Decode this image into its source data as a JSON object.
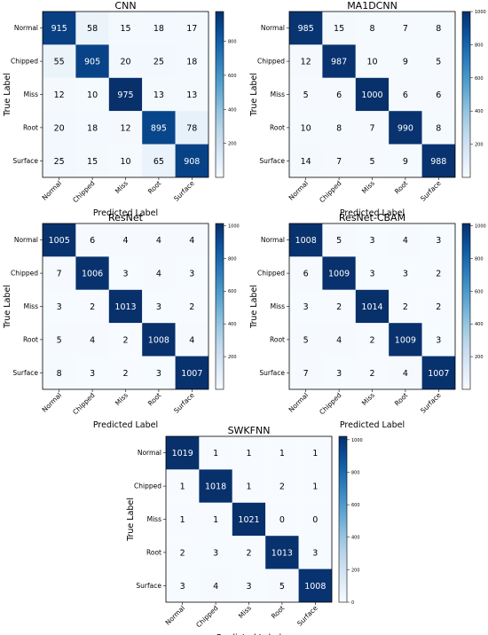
{
  "chart_data": [
    {
      "type": "heatmap",
      "title": "CNN",
      "xlabel": "Predicted Label",
      "ylabel": "True Label",
      "x_categories": [
        "Normal",
        "Chipped",
        "Miss",
        "Root",
        "Surface"
      ],
      "y_categories": [
        "Normal",
        "Chipped",
        "Miss",
        "Root",
        "Surface"
      ],
      "values": [
        [
          915,
          58,
          15,
          18,
          17
        ],
        [
          55,
          905,
          20,
          25,
          18
        ],
        [
          12,
          10,
          975,
          13,
          13
        ],
        [
          20,
          18,
          12,
          895,
          78
        ],
        [
          25,
          15,
          10,
          65,
          908
        ]
      ],
      "colorbar": {
        "min": 0,
        "max": 975,
        "ticks": [
          "200",
          "400",
          "600",
          "800"
        ]
      },
      "colormap": "Blues"
    },
    {
      "type": "heatmap",
      "title": "MA1DCNN",
      "xlabel": "Predicted Label",
      "ylabel": "True Label",
      "x_categories": [
        "Normal",
        "Chipped",
        "Miss",
        "Root",
        "Surface"
      ],
      "y_categories": [
        "Normal",
        "Chipped",
        "Miss",
        "Root",
        "Surface"
      ],
      "values": [
        [
          985,
          15,
          8,
          7,
          8
        ],
        [
          12,
          987,
          10,
          9,
          5
        ],
        [
          5,
          6,
          1000,
          6,
          6
        ],
        [
          10,
          8,
          7,
          990,
          8
        ],
        [
          14,
          7,
          5,
          9,
          988
        ]
      ],
      "colorbar": {
        "min": 0,
        "max": 1000,
        "ticks": [
          "200",
          "400",
          "600",
          "800",
          "1000"
        ]
      },
      "colormap": "Blues"
    },
    {
      "type": "heatmap",
      "title": "ResNet",
      "xlabel": "Predicted Label",
      "ylabel": "True Label",
      "x_categories": [
        "Normal",
        "Chipped",
        "Miss",
        "Root",
        "Surface"
      ],
      "y_categories": [
        "Normal",
        "Chipped",
        "Miss",
        "Root",
        "Surface"
      ],
      "values": [
        [
          1005,
          6,
          4,
          4,
          4
        ],
        [
          7,
          1006,
          3,
          4,
          3
        ],
        [
          3,
          2,
          1013,
          3,
          2
        ],
        [
          5,
          4,
          2,
          1008,
          4
        ],
        [
          8,
          3,
          2,
          3,
          1007
        ]
      ],
      "colorbar": {
        "min": 0,
        "max": 1013,
        "ticks": [
          "200",
          "400",
          "600",
          "800",
          "1000"
        ]
      },
      "colormap": "Blues"
    },
    {
      "type": "heatmap",
      "title": "ResNet-CBAM",
      "xlabel": "Predicted Label",
      "ylabel": "True Label",
      "x_categories": [
        "Normal",
        "Chipped",
        "Miss",
        "Root",
        "Surface"
      ],
      "y_categories": [
        "Normal",
        "Chipped",
        "Miss",
        "Root",
        "Surface"
      ],
      "values": [
        [
          1008,
          5,
          3,
          4,
          3
        ],
        [
          6,
          1009,
          3,
          3,
          2
        ],
        [
          3,
          2,
          1014,
          2,
          2
        ],
        [
          5,
          4,
          2,
          1009,
          3
        ],
        [
          7,
          3,
          2,
          4,
          1007
        ]
      ],
      "colorbar": {
        "min": 0,
        "max": 1014,
        "ticks": [
          "200",
          "400",
          "600",
          "800",
          "1000"
        ]
      },
      "colormap": "Blues"
    },
    {
      "type": "heatmap",
      "title": "SWKFNN",
      "xlabel": "Predicted Label",
      "ylabel": "True Label",
      "x_categories": [
        "Normal",
        "Chipped",
        "Miss",
        "Root",
        "Surface"
      ],
      "y_categories": [
        "Normal",
        "Chipped",
        "Miss",
        "Root",
        "Surface"
      ],
      "values": [
        [
          1019,
          1,
          1,
          1,
          1
        ],
        [
          1,
          1018,
          1,
          2,
          1
        ],
        [
          1,
          1,
          1021,
          0,
          0
        ],
        [
          2,
          3,
          2,
          1013,
          3
        ],
        [
          3,
          4,
          3,
          5,
          1008
        ]
      ],
      "colorbar": {
        "min": 0,
        "max": 1021,
        "ticks": [
          "0",
          "200",
          "400",
          "600",
          "800",
          "1000"
        ]
      },
      "colormap": "Blues"
    }
  ]
}
